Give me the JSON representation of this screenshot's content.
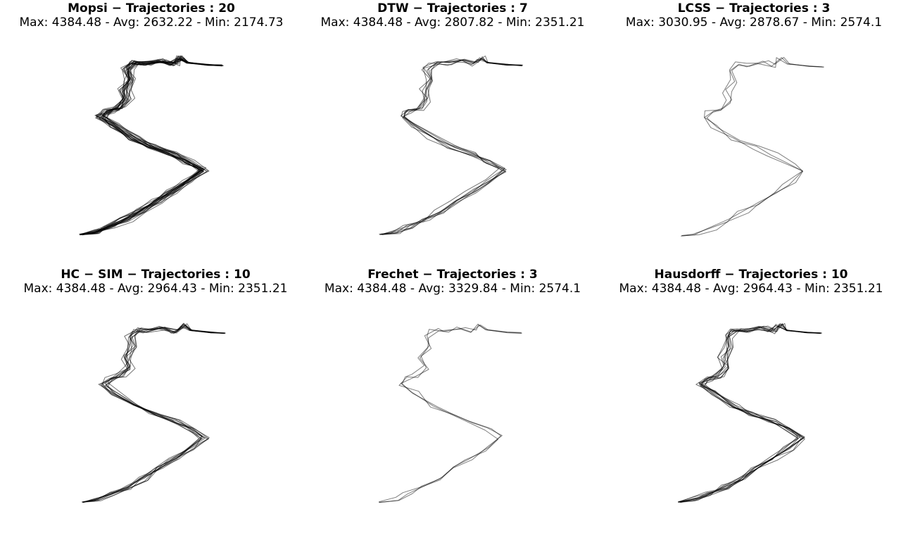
{
  "chart_data": [
    {
      "type": "line",
      "title": "Mopsi − Trajectories : 20",
      "subtitle": "Max: 4384.48 - Avg: 2632.22 - Min: 2174.73",
      "trajectory_count": 20,
      "max": 4384.48,
      "avg": 2632.22,
      "min": 2174.73,
      "axes_visible": false,
      "grid": false,
      "line_color": "#000000"
    },
    {
      "type": "line",
      "title": "DTW − Trajectories : 7",
      "subtitle": "Max: 4384.48 - Avg: 2807.82 - Min: 2351.21",
      "trajectory_count": 7,
      "max": 4384.48,
      "avg": 2807.82,
      "min": 2351.21,
      "axes_visible": false,
      "grid": false,
      "line_color": "#000000"
    },
    {
      "type": "line",
      "title": "LCSS − Trajectories : 3",
      "subtitle": "Max: 3030.95 - Avg: 2878.67 - Min: 2574.1",
      "trajectory_count": 3,
      "max": 3030.95,
      "avg": 2878.67,
      "min": 2574.1,
      "axes_visible": false,
      "grid": false,
      "line_color": "#000000"
    },
    {
      "type": "line",
      "title": "HC − SIM − Trajectories : 10",
      "subtitle": "Max: 4384.48 - Avg: 2964.43 - Min: 2351.21",
      "trajectory_count": 10,
      "max": 4384.48,
      "avg": 2964.43,
      "min": 2351.21,
      "axes_visible": false,
      "grid": false,
      "line_color": "#000000"
    },
    {
      "type": "line",
      "title": "Frechet − Trajectories : 3",
      "subtitle": "Max: 4384.48 - Avg: 3329.84 - Min: 2574.1",
      "trajectory_count": 3,
      "max": 4384.48,
      "avg": 3329.84,
      "min": 2574.1,
      "axes_visible": false,
      "grid": false,
      "line_color": "#000000"
    },
    {
      "type": "line",
      "title": "Hausdorff − Trajectories : 10",
      "subtitle": "Max: 4384.48 - Avg: 2964.43 - Min: 2351.21",
      "trajectory_count": 10,
      "max": 4384.48,
      "avg": 2964.43,
      "min": 2351.21,
      "axes_visible": false,
      "grid": false,
      "line_color": "#000000"
    }
  ]
}
